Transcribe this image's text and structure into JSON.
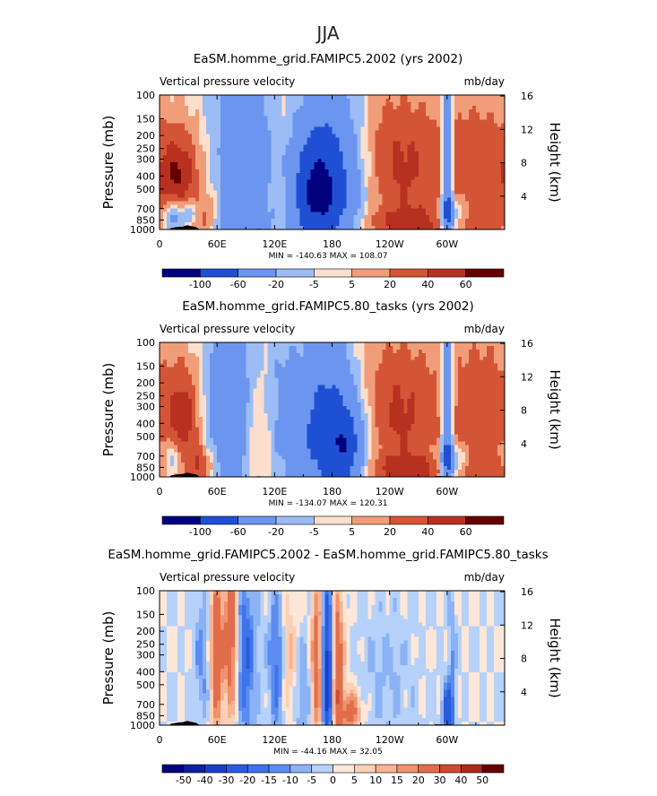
{
  "page_title": "JJA",
  "chart_data": [
    {
      "type": "heatmap",
      "title": "EaSM.homme_grid.FAMIPC5.2002 (yrs 2002)",
      "left_label": "Vertical pressure velocity",
      "right_label": "mb/day",
      "ylabel": "Pressure (mb)",
      "ylabel_right": "Height (km)",
      "x_ticks": [
        "0",
        "60E",
        "120E",
        "180",
        "120W",
        "60W"
      ],
      "x_tick_lon": [
        0,
        60,
        120,
        180,
        240,
        300
      ],
      "xlim": [
        0,
        360
      ],
      "pressure_ticks": [
        "100",
        "150",
        "200",
        "250",
        "300",
        "400",
        "500",
        "700",
        "850",
        "1000"
      ],
      "pressure_values": [
        100,
        150,
        200,
        250,
        300,
        400,
        500,
        700,
        850,
        1000
      ],
      "height_ticks": [
        "16",
        "12",
        "8",
        "4"
      ],
      "height_values": [
        16,
        12,
        8,
        4
      ],
      "ylim": [
        1000,
        100
      ],
      "stats": "MIN = -140.63   MAX = 108.07",
      "levels": [
        "-100",
        "-60",
        "-20",
        "-5",
        "5",
        "20",
        "40",
        "60"
      ],
      "colors": [
        "#00007f",
        "#0f29a8",
        "#1f50d3",
        "#3a6fe6",
        "#6b95ef",
        "#9cbcf5",
        "#c7ddfa",
        "#fbdfcc",
        "#f8bfa2",
        "#f19d79",
        "#e67a52",
        "#d45535",
        "#b8301f",
        "#8c1010",
        "#650000"
      ],
      "features": [
        {
          "lon": 20,
          "p": 420,
          "dlon": 15,
          "dlog": 0.25,
          "amp": 55
        },
        {
          "lon": 45,
          "p": 800,
          "dlon": 12,
          "dlog": 0.1,
          "amp": 50
        },
        {
          "lon": 15,
          "p": 800,
          "dlon": 10,
          "dlog": 0.1,
          "amp": -60
        },
        {
          "lon": 35,
          "p": 750,
          "dlon": 8,
          "dlog": 0.08,
          "amp": -50
        },
        {
          "lon": 90,
          "p": 280,
          "dlon": 22,
          "dlog": 0.55,
          "amp": -45
        },
        {
          "lon": 75,
          "p": 850,
          "dlon": 25,
          "dlog": 0.08,
          "amp": -30
        },
        {
          "lon": 130,
          "p": 400,
          "dlon": 15,
          "dlog": 0.5,
          "amp": 20
        },
        {
          "lon": 175,
          "p": 400,
          "dlon": 28,
          "dlog": 0.45,
          "amp": -85
        },
        {
          "lon": 160,
          "p": 600,
          "dlon": 18,
          "dlog": 0.3,
          "amp": -45
        },
        {
          "lon": 250,
          "p": 380,
          "dlon": 30,
          "dlog": 0.4,
          "amp": 40
        },
        {
          "lon": 330,
          "p": 380,
          "dlon": 30,
          "dlog": 0.4,
          "amp": 35
        },
        {
          "lon": 280,
          "p": 900,
          "dlon": 55,
          "dlog": 0.08,
          "amp": 30
        },
        {
          "lon": 300,
          "p": 400,
          "dlon": 4,
          "dlog": 0.6,
          "amp": -75
        },
        {
          "lon": 305,
          "p": 800,
          "dlon": 12,
          "dlog": 0.1,
          "amp": -55
        },
        {
          "lon": 215,
          "p": 200,
          "dlon": 40,
          "dlog": 0.3,
          "amp": 10
        }
      ]
    },
    {
      "type": "heatmap",
      "title": "EaSM.homme_grid.FAMIPC5.80_tasks (yrs 2002)",
      "left_label": "Vertical pressure velocity",
      "right_label": "mb/day",
      "ylabel": "Pressure (mb)",
      "ylabel_right": "Height (km)",
      "x_ticks": [
        "0",
        "60E",
        "120E",
        "180",
        "120W",
        "60W"
      ],
      "x_tick_lon": [
        0,
        60,
        120,
        180,
        240,
        300
      ],
      "xlim": [
        0,
        360
      ],
      "pressure_ticks": [
        "100",
        "150",
        "200",
        "250",
        "300",
        "400",
        "500",
        "700",
        "850",
        "1000"
      ],
      "pressure_values": [
        100,
        150,
        200,
        250,
        300,
        400,
        500,
        700,
        850,
        1000
      ],
      "height_ticks": [
        "16",
        "12",
        "8",
        "4"
      ],
      "height_values": [
        16,
        12,
        8,
        4
      ],
      "ylim": [
        1000,
        100
      ],
      "stats": "MIN = -134.07   MAX = 120.31",
      "levels": [
        "-100",
        "-60",
        "-20",
        "-5",
        "5",
        "20",
        "40",
        "60"
      ],
      "colors": [
        "#00007f",
        "#0f29a8",
        "#1f50d3",
        "#3a6fe6",
        "#6b95ef",
        "#9cbcf5",
        "#c7ddfa",
        "#fbdfcc",
        "#f8bfa2",
        "#f19d79",
        "#e67a52",
        "#d45535",
        "#b8301f",
        "#8c1010",
        "#650000"
      ],
      "features": [
        {
          "lon": 25,
          "p": 400,
          "dlon": 12,
          "dlog": 0.3,
          "amp": 50
        },
        {
          "lon": 15,
          "p": 750,
          "dlon": 10,
          "dlog": 0.12,
          "amp": -40
        },
        {
          "lon": 45,
          "p": 820,
          "dlon": 10,
          "dlog": 0.1,
          "amp": 35
        },
        {
          "lon": 75,
          "p": 300,
          "dlon": 18,
          "dlog": 0.55,
          "amp": -55
        },
        {
          "lon": 100,
          "p": 450,
          "dlon": 15,
          "dlog": 0.4,
          "amp": 25
        },
        {
          "lon": 125,
          "p": 300,
          "dlon": 12,
          "dlog": 0.4,
          "amp": -20
        },
        {
          "lon": 175,
          "p": 400,
          "dlon": 26,
          "dlog": 0.45,
          "amp": -80
        },
        {
          "lon": 195,
          "p": 650,
          "dlon": 15,
          "dlog": 0.25,
          "amp": -50
        },
        {
          "lon": 250,
          "p": 400,
          "dlon": 30,
          "dlog": 0.4,
          "amp": 40
        },
        {
          "lon": 335,
          "p": 350,
          "dlon": 28,
          "dlog": 0.45,
          "amp": 35
        },
        {
          "lon": 280,
          "p": 900,
          "dlon": 55,
          "dlog": 0.08,
          "amp": 30
        },
        {
          "lon": 300,
          "p": 400,
          "dlon": 4,
          "dlog": 0.6,
          "amp": -75
        },
        {
          "lon": 305,
          "p": 800,
          "dlon": 12,
          "dlog": 0.1,
          "amp": -55
        },
        {
          "lon": 215,
          "p": 180,
          "dlon": 40,
          "dlog": 0.3,
          "amp": 12
        }
      ]
    },
    {
      "type": "heatmap",
      "title": "EaSM.homme_grid.FAMIPC5.2002 - EaSM.homme_grid.FAMIPC5.80_tasks",
      "left_label": "Vertical pressure velocity",
      "right_label": "mb/day",
      "ylabel": "Pressure (mb)",
      "ylabel_right": "Height (km)",
      "x_ticks": [
        "0",
        "60E",
        "120E",
        "180",
        "120W",
        "60W"
      ],
      "x_tick_lon": [
        0,
        60,
        120,
        180,
        240,
        300
      ],
      "xlim": [
        0,
        360
      ],
      "pressure_ticks": [
        "100",
        "150",
        "200",
        "250",
        "300",
        "400",
        "500",
        "700",
        "850",
        "1000"
      ],
      "pressure_values": [
        100,
        150,
        200,
        250,
        300,
        400,
        500,
        700,
        850,
        1000
      ],
      "height_ticks": [
        "16",
        "12",
        "8",
        "4"
      ],
      "height_values": [
        16,
        12,
        8,
        4
      ],
      "ylim": [
        1000,
        100
      ],
      "stats": "MIN = -44.16   MAX = 32.05",
      "levels": [
        "-50",
        "-40",
        "-30",
        "-20",
        "-15",
        "-10",
        "-5",
        "0",
        "5",
        "10",
        "15",
        "20",
        "30",
        "40",
        "50"
      ],
      "colors": [
        "#00007f",
        "#0c20a0",
        "#1a3fc4",
        "#2a5bdc",
        "#3f73e8",
        "#5b8cf0",
        "#8cb2f6",
        "#b6d1fa",
        "#dce9fc",
        "#fde7d8",
        "#fbd0b7",
        "#f7b392",
        "#ef926d",
        "#e26d4b",
        "#cf4a30",
        "#ad2a18",
        "#650000"
      ],
      "features": [
        {
          "lon": 60,
          "p": 280,
          "dlon": 5,
          "dlog": 0.45,
          "amp": 28
        },
        {
          "lon": 75,
          "p": 200,
          "dlon": 5,
          "dlog": 0.45,
          "amp": 32
        },
        {
          "lon": 45,
          "p": 300,
          "dlon": 6,
          "dlog": 0.35,
          "amp": -12
        },
        {
          "lon": 90,
          "p": 300,
          "dlon": 8,
          "dlog": 0.45,
          "amp": -20
        },
        {
          "lon": 122,
          "p": 350,
          "dlon": 6,
          "dlog": 0.4,
          "amp": -18
        },
        {
          "lon": 135,
          "p": 300,
          "dlon": 6,
          "dlog": 0.35,
          "amp": 12
        },
        {
          "lon": 165,
          "p": 350,
          "dlon": 5,
          "dlog": 0.45,
          "amp": 30
        },
        {
          "lon": 175,
          "p": 380,
          "dlon": 5,
          "dlog": 0.45,
          "amp": -44
        },
        {
          "lon": 185,
          "p": 380,
          "dlon": 5,
          "dlog": 0.45,
          "amp": 32
        },
        {
          "lon": 200,
          "p": 800,
          "dlon": 8,
          "dlog": 0.12,
          "amp": 24
        },
        {
          "lon": 150,
          "p": 600,
          "dlon": 6,
          "dlog": 0.3,
          "amp": -12
        },
        {
          "lon": 300,
          "p": 800,
          "dlon": 4,
          "dlog": 0.15,
          "amp": -24
        },
        {
          "lon": 305,
          "p": 400,
          "dlon": 3,
          "dlog": 0.5,
          "amp": -10
        },
        {
          "lon": 235,
          "p": 500,
          "dlon": 20,
          "dlog": 0.4,
          "amp": -6
        }
      ]
    }
  ]
}
